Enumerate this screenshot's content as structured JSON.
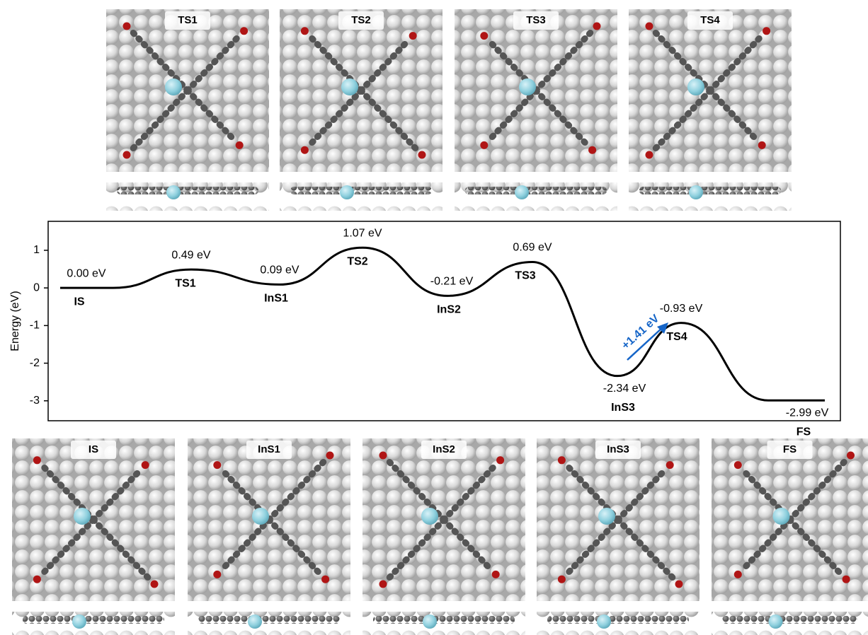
{
  "chart_data": {
    "type": "energy-profile",
    "y_label": "Energy (eV)",
    "categories": [
      "IS",
      "TS1",
      "InS1",
      "TS2",
      "InS2",
      "TS3",
      "InS3",
      "TS4",
      "FS"
    ],
    "values": [
      0.0,
      0.49,
      0.09,
      1.07,
      -0.21,
      0.69,
      -2.34,
      -0.93,
      -2.99
    ],
    "value_labels": [
      "0.00 eV",
      "0.49 eV",
      "0.09 eV",
      "1.07 eV",
      "-0.21 eV",
      "0.69 eV",
      "-2.34 eV",
      "-0.93 eV",
      "-2.99 eV"
    ],
    "color": "#000000",
    "ylim": [
      -3.53,
      1.77
    ],
    "yticks": [
      -3,
      -2,
      -1,
      0,
      1
    ],
    "annotation": {
      "text": "+1.41 eV",
      "color": "#1565c8"
    }
  },
  "panels": {
    "top": [
      "TS1",
      "TS2",
      "TS3",
      "TS4"
    ],
    "bottom": [
      "IS",
      "InS1",
      "InS2",
      "InS3",
      "FS"
    ]
  }
}
